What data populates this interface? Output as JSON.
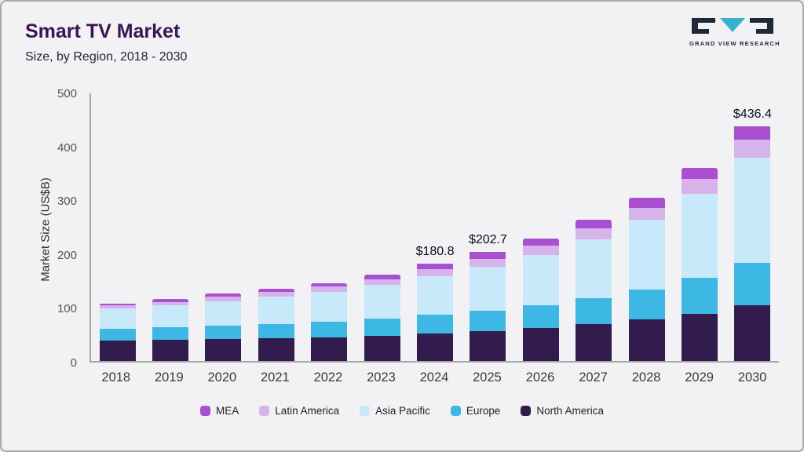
{
  "header": {
    "title": "Smart TV Market",
    "subtitle": "Size, by Region, 2018 - 2030"
  },
  "logo": {
    "text": "GRAND VIEW RESEARCH"
  },
  "chart_data": {
    "type": "bar",
    "stacked": true,
    "title": "Smart TV Market",
    "subtitle": "Size, by Region, 2018 - 2030",
    "xlabel": "",
    "ylabel": "Market Size (US$B)",
    "ylim": [
      0,
      500
    ],
    "yticks": [
      0,
      100,
      200,
      300,
      400,
      500
    ],
    "grid": false,
    "legend_position": "bottom",
    "categories": [
      "2018",
      "2019",
      "2020",
      "2021",
      "2022",
      "2023",
      "2024",
      "2025",
      "2026",
      "2027",
      "2028",
      "2029",
      "2030"
    ],
    "series": [
      {
        "name": "North America",
        "color": "#321b4d",
        "values": [
          38,
          39,
          41,
          42,
          44,
          47,
          51,
          55,
          61,
          68,
          77,
          88,
          103
        ]
      },
      {
        "name": "Europe",
        "color": "#3db7e4",
        "values": [
          22,
          23,
          25,
          27,
          29,
          32,
          35,
          39,
          43,
          48,
          55,
          66,
          79
        ]
      },
      {
        "name": "Asia Pacific",
        "color": "#c7e9f9",
        "values": [
          37,
          41,
          45,
          50,
          55,
          62,
          71,
          81,
          93,
          110,
          131,
          157,
          195
        ]
      },
      {
        "name": "Latin America",
        "color": "#d7b3ec",
        "values": [
          6,
          7,
          8,
          9,
          10,
          11,
          13,
          15,
          17,
          20,
          22,
          27,
          34
        ]
      },
      {
        "name": "MEA",
        "color": "#a94fd1",
        "values": [
          4,
          5,
          6,
          6,
          7,
          8,
          10.8,
          12.7,
          14,
          16,
          18,
          21,
          25.4
        ]
      }
    ],
    "total_labels": {
      "2024": "$180.8",
      "2025": "$202.7",
      "2030": "$436.4"
    },
    "legend_order": [
      "MEA",
      "Latin America",
      "Asia Pacific",
      "Europe",
      "North America"
    ]
  }
}
